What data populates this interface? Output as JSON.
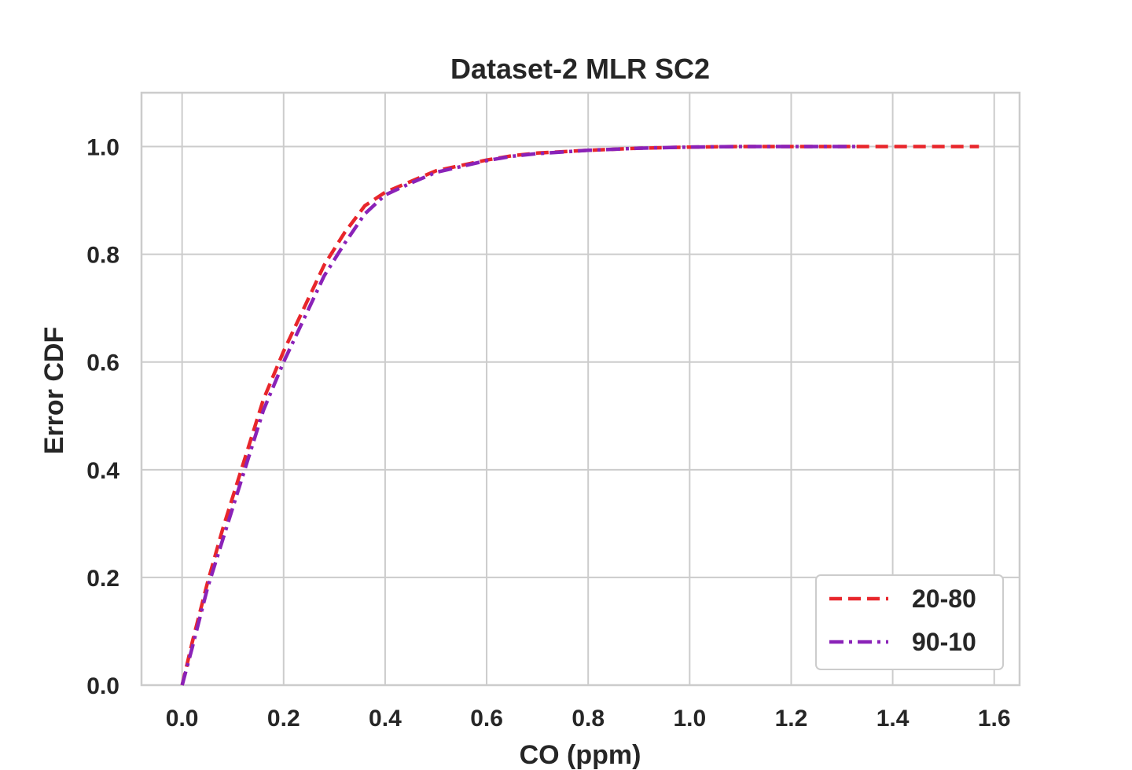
{
  "chart_data": {
    "type": "line",
    "title": "Dataset-2 MLR SC2",
    "xlabel": "CO (ppm)",
    "ylabel": "Error CDF",
    "xlim": [
      -0.08,
      1.65
    ],
    "ylim": [
      0.0,
      1.1
    ],
    "xticks": [
      "0.0",
      "0.2",
      "0.4",
      "0.6",
      "0.8",
      "1.0",
      "1.2",
      "1.4",
      "1.6"
    ],
    "yticks": [
      "0.0",
      "0.2",
      "0.4",
      "0.6",
      "0.8",
      "1.0"
    ],
    "grid": true,
    "legend": {
      "placement": "bottom-right"
    },
    "series": [
      {
        "name": "20-80",
        "color": "#e8262b",
        "style": "dashed",
        "x": [
          0.0,
          0.02,
          0.05,
          0.08,
          0.1,
          0.13,
          0.16,
          0.2,
          0.24,
          0.28,
          0.32,
          0.36,
          0.4,
          0.45,
          0.5,
          0.55,
          0.6,
          0.65,
          0.7,
          0.8,
          0.9,
          1.0,
          1.1,
          1.2,
          1.3,
          1.4,
          1.5,
          1.57
        ],
        "y": [
          0.0,
          0.08,
          0.19,
          0.29,
          0.35,
          0.44,
          0.53,
          0.62,
          0.7,
          0.78,
          0.84,
          0.89,
          0.915,
          0.935,
          0.955,
          0.965,
          0.975,
          0.983,
          0.988,
          0.993,
          0.997,
          0.999,
          1.0,
          1.0,
          1.0,
          1.0,
          1.0,
          1.0
        ]
      },
      {
        "name": "90-10",
        "color": "#8a22b8",
        "style": "dashdot",
        "x": [
          0.0,
          0.02,
          0.05,
          0.08,
          0.1,
          0.13,
          0.16,
          0.2,
          0.24,
          0.28,
          0.32,
          0.36,
          0.4,
          0.45,
          0.5,
          0.55,
          0.6,
          0.65,
          0.7,
          0.8,
          0.9,
          1.0,
          1.1,
          1.2,
          1.3,
          1.33
        ],
        "y": [
          0.0,
          0.07,
          0.18,
          0.27,
          0.33,
          0.42,
          0.51,
          0.6,
          0.68,
          0.76,
          0.82,
          0.875,
          0.91,
          0.932,
          0.952,
          0.963,
          0.974,
          0.982,
          0.987,
          0.993,
          0.997,
          0.999,
          1.0,
          1.0,
          1.0,
          1.0
        ]
      }
    ]
  }
}
